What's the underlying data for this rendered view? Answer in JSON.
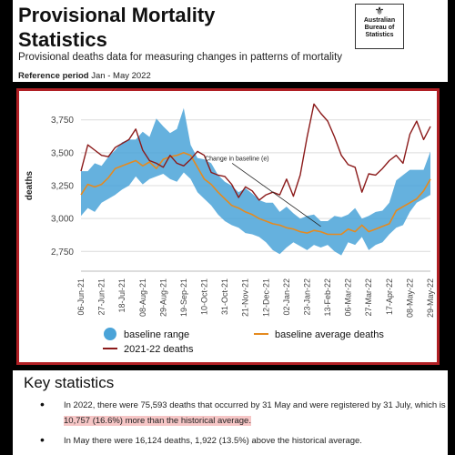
{
  "header": {
    "title_line1": "Provisional Mortality",
    "title_line2": "Statistics",
    "subtitle": "Provisional deaths data for measuring changes in patterns of mortality",
    "ref_label": "Reference period",
    "ref_value": "Jan - May 2022",
    "logo": {
      "icon": "coat-of-arms-icon",
      "line1": "Australian",
      "line2": "Bureau of",
      "line3": "Statistics"
    }
  },
  "chart_data": {
    "type": "line",
    "ylabel": "deaths",
    "ylim": [
      2600,
      3900
    ],
    "yticks": [
      "2,750",
      "3,000",
      "3,250",
      "3,500",
      "3,750"
    ],
    "ytick_values": [
      2750,
      3000,
      3250,
      3500,
      3750
    ],
    "grid": true,
    "x": [
      "06-Jun-21",
      "13-Jun-21",
      "20-Jun-21",
      "27-Jun-21",
      "04-Jul-21",
      "11-Jul-21",
      "18-Jul-21",
      "25-Jul-21",
      "01-Aug-21",
      "08-Aug-21",
      "15-Aug-21",
      "22-Aug-21",
      "29-Aug-21",
      "05-Sep-21",
      "12-Sep-21",
      "19-Sep-21",
      "26-Sep-21",
      "03-Oct-21",
      "10-Oct-21",
      "17-Oct-21",
      "24-Oct-21",
      "31-Oct-21",
      "07-Nov-21",
      "14-Nov-21",
      "21-Nov-21",
      "28-Nov-21",
      "05-Dec-21",
      "12-Dec-21",
      "19-Dec-21",
      "26-Dec-21",
      "02-Jan-22",
      "09-Jan-22",
      "16-Jan-22",
      "23-Jan-22",
      "30-Jan-22",
      "06-Feb-22",
      "13-Feb-22",
      "20-Feb-22",
      "27-Feb-22",
      "06-Mar-22",
      "13-Mar-22",
      "20-Mar-22",
      "27-Mar-22",
      "03-Apr-22",
      "10-Apr-22",
      "17-Apr-22",
      "24-Apr-22",
      "01-May-22",
      "08-May-22",
      "15-May-22",
      "22-May-22",
      "29-May-22"
    ],
    "xtick_labels": [
      "06-Jun-21",
      "27-Jun-21",
      "18-Jul-21",
      "08-Aug-21",
      "29-Aug-21",
      "19-Sep-21",
      "10-Oct-21",
      "31-Oct-21",
      "21-Nov-21",
      "12-Dec-21",
      "02-Jan-22",
      "23-Jan-22",
      "13-Feb-22",
      "06-Mar-22",
      "27-Mar-22",
      "17-Apr-22",
      "08-May-22",
      "29-May-22"
    ],
    "series": [
      {
        "name": "baseline range",
        "kind": "band",
        "color": "#4aa3d8",
        "lower": [
          3020,
          3080,
          3050,
          3120,
          3150,
          3180,
          3220,
          3250,
          3320,
          3260,
          3300,
          3320,
          3340,
          3300,
          3280,
          3350,
          3300,
          3200,
          3150,
          3100,
          3030,
          2980,
          2950,
          2930,
          2890,
          2880,
          2860,
          2820,
          2760,
          2730,
          2780,
          2820,
          2790,
          2760,
          2800,
          2780,
          2800,
          2750,
          2720,
          2820,
          2800,
          2860,
          2760,
          2800,
          2820,
          2880,
          2930,
          2950,
          3050,
          3120,
          3150,
          3180
        ],
        "upper": [
          3360,
          3360,
          3420,
          3400,
          3470,
          3520,
          3580,
          3600,
          3600,
          3660,
          3620,
          3760,
          3700,
          3650,
          3680,
          3840,
          3560,
          3460,
          3450,
          3420,
          3330,
          3280,
          3250,
          3200,
          3230,
          3190,
          3140,
          3120,
          3120,
          3050,
          3090,
          3040,
          3000,
          3020,
          3030,
          2980,
          2980,
          3020,
          3010,
          3030,
          3080,
          3000,
          3020,
          3050,
          3060,
          3120,
          3290,
          3330,
          3370,
          3370,
          3370,
          3510
        ]
      },
      {
        "name": "baseline average deaths",
        "kind": "line",
        "color": "#e58a1f",
        "values": [
          3180,
          3260,
          3240,
          3260,
          3310,
          3380,
          3400,
          3420,
          3440,
          3400,
          3430,
          3380,
          3450,
          3470,
          3480,
          3500,
          3480,
          3390,
          3300,
          3260,
          3200,
          3150,
          3100,
          3080,
          3050,
          3030,
          3000,
          2980,
          2960,
          2950,
          2930,
          2920,
          2900,
          2890,
          2910,
          2900,
          2880,
          2880,
          2880,
          2920,
          2900,
          2950,
          2900,
          2920,
          2940,
          2960,
          3060,
          3090,
          3120,
          3150,
          3210,
          3300
        ]
      },
      {
        "name": "2021-22 deaths",
        "kind": "line",
        "color": "#8b1a1a",
        "values": [
          3360,
          3560,
          3520,
          3480,
          3470,
          3540,
          3570,
          3600,
          3680,
          3520,
          3440,
          3420,
          3390,
          3480,
          3420,
          3400,
          3450,
          3510,
          3480,
          3350,
          3330,
          3320,
          3260,
          3160,
          3240,
          3210,
          3140,
          3180,
          3200,
          3180,
          3300,
          3170,
          3330,
          3620,
          3870,
          3800,
          3740,
          3620,
          3480,
          3410,
          3390,
          3200,
          3340,
          3330,
          3380,
          3440,
          3480,
          3420,
          3640,
          3740,
          3600,
          3700
        ]
      }
    ],
    "annotation": "Change in baseline (e)",
    "legend_position": "bottom"
  },
  "stats": {
    "title": "Key statistics",
    "bullet1": {
      "pre": "In 2022, there were 75,593 deaths that occurred by 31 May and were registered by 31 July, which is ",
      "highlight": "10,757 (16.6%) more than the historical average."
    },
    "bullet2": "In May there were 16,124 deaths, 1,922 (13.5%) above the historical average."
  }
}
